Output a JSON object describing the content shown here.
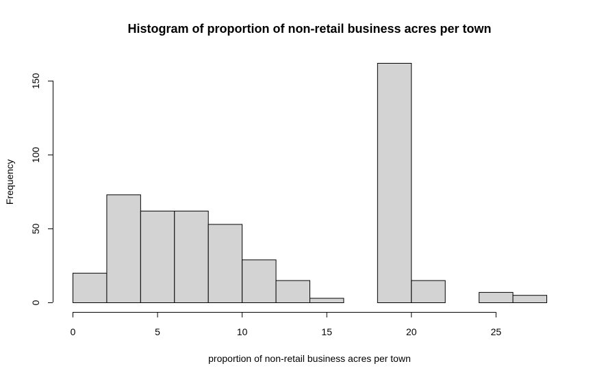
{
  "chart_data": {
    "type": "bar",
    "title": "Histogram of proportion of non-retail business acres per town",
    "xlabel": "proportion of non-retail business acres per town",
    "ylabel": "Frequency",
    "bins": [
      {
        "x0": 0,
        "x1": 2,
        "count": 20
      },
      {
        "x0": 2,
        "x1": 4,
        "count": 73
      },
      {
        "x0": 4,
        "x1": 6,
        "count": 62
      },
      {
        "x0": 6,
        "x1": 8,
        "count": 62
      },
      {
        "x0": 8,
        "x1": 10,
        "count": 53
      },
      {
        "x0": 10,
        "x1": 12,
        "count": 29
      },
      {
        "x0": 12,
        "x1": 14,
        "count": 15
      },
      {
        "x0": 14,
        "x1": 16,
        "count": 3
      },
      {
        "x0": 16,
        "x1": 18,
        "count": 0
      },
      {
        "x0": 18,
        "x1": 20,
        "count": 162
      },
      {
        "x0": 20,
        "x1": 22,
        "count": 15
      },
      {
        "x0": 22,
        "x1": 24,
        "count": 0
      },
      {
        "x0": 24,
        "x1": 26,
        "count": 7
      },
      {
        "x0": 26,
        "x1": 28,
        "count": 5
      }
    ],
    "xlim": [
      0,
      28
    ],
    "ylim": [
      0,
      162
    ],
    "xticks": [
      0,
      5,
      10,
      15,
      20,
      25
    ],
    "yticks": [
      0,
      50,
      100,
      150
    ],
    "grid": false,
    "bar_fill": "#d3d3d3",
    "bar_stroke": "#000000"
  }
}
